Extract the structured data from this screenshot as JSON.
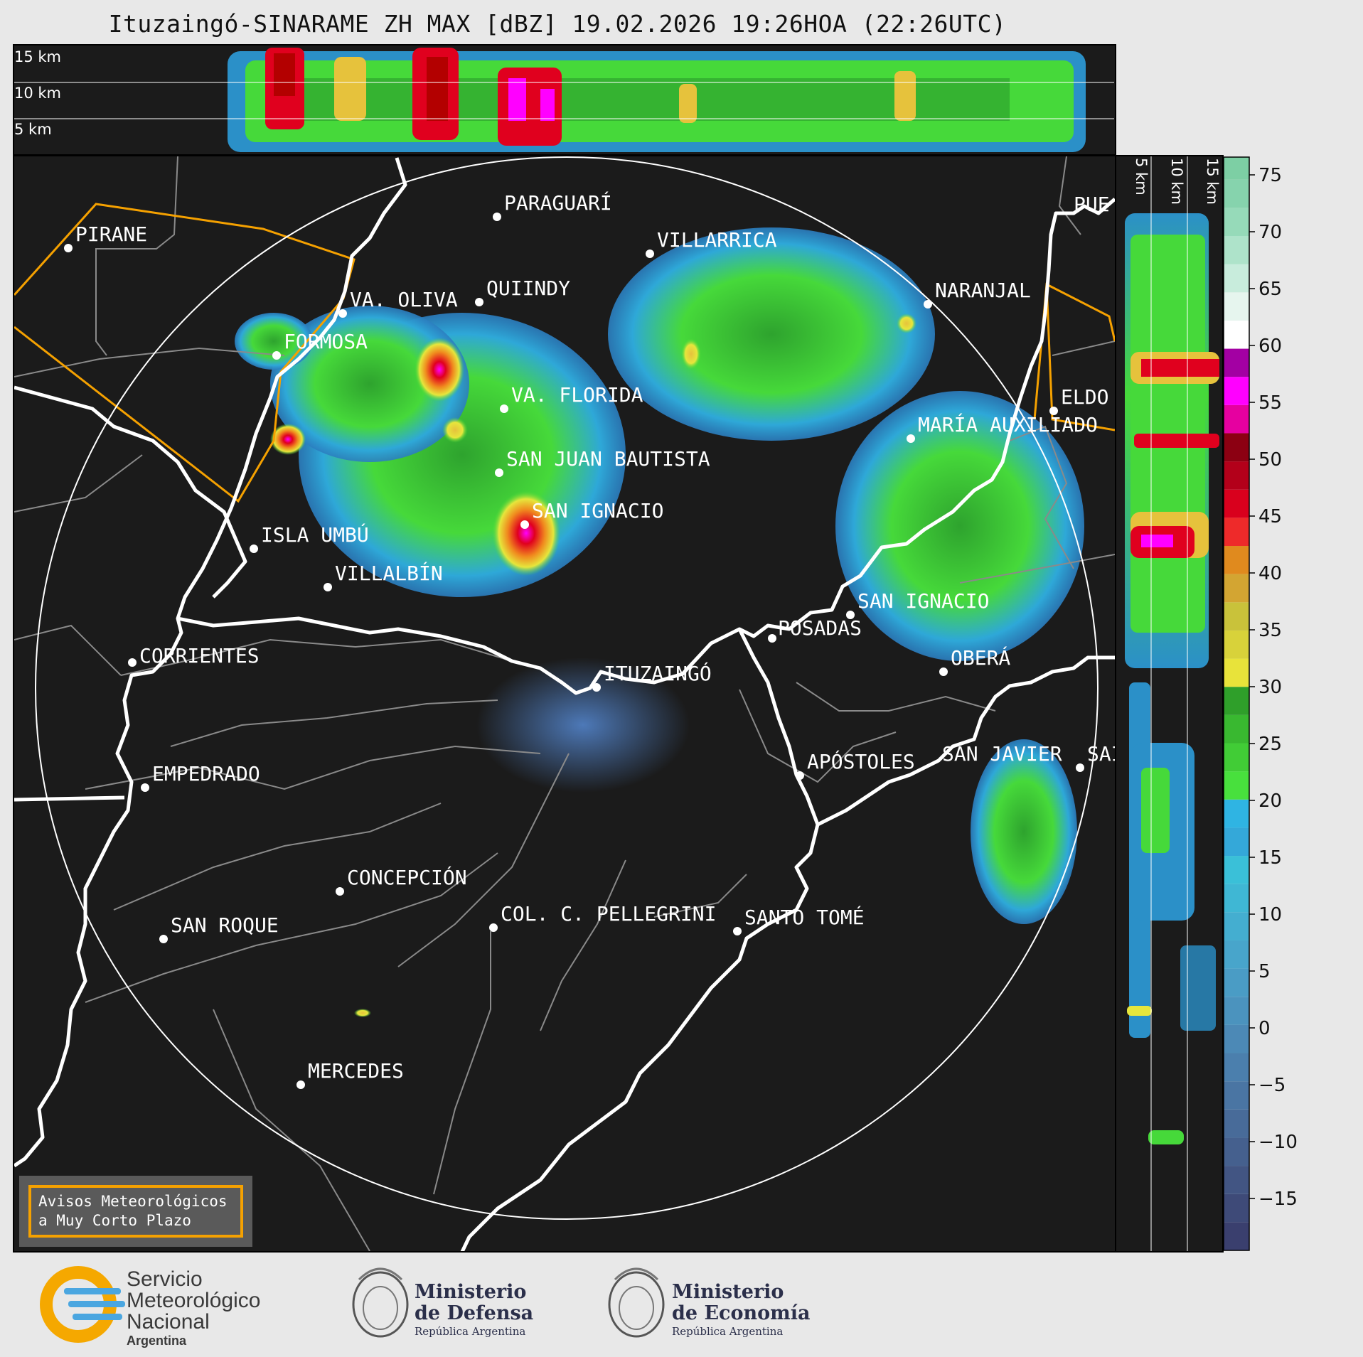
{
  "title": "Ituzaingó-SINARAME ZH MAX [dBZ] 19.02.2026 19:26HOA (22:26UTC)",
  "profile_top": {
    "levels": [
      "15 km",
      "10 km",
      "5 km"
    ]
  },
  "profile_right": {
    "levels": [
      "5 km",
      "10 km",
      "15 km"
    ]
  },
  "colorbar": {
    "ticks": [
      "75",
      "70",
      "65",
      "60",
      "55",
      "50",
      "45",
      "40",
      "35",
      "30",
      "25",
      "20",
      "15",
      "10",
      "5",
      "0",
      "−5",
      "−10",
      "−15"
    ],
    "range": [
      -20,
      77
    ]
  },
  "map": {
    "radar_site": "ITUZAINGÓ",
    "cities": [
      "PIRANE",
      "PARAGUARÍ",
      "VILLARRICA",
      "QUIINDY",
      "VA. OLIVA",
      "FORMOSA",
      "NARANJAL",
      "PUE",
      "ELDO",
      "MARÍA AUXILIADO",
      "VA. FLORIDA",
      "SAN JUAN BAUTISTA",
      "SAN IGNACIO",
      "ISLA UMBÚ",
      "VILLALBÍN",
      "SAN IGNACIO",
      "POSADAS",
      "CORRIENTES",
      "OBERÁ",
      "ITUZAINGÓ",
      "APÓSTOLES",
      "SAN JAVIER",
      "SAI",
      "EMPEDRADO",
      "CONCEPCIÓN",
      "COL. C. PELLEGRINI",
      "SANTO TOMÉ",
      "SAN ROQUE",
      "MERCEDES"
    ]
  },
  "notice": {
    "line1": "Avisos Meteorológicos",
    "line2": "a Muy Corto Plazo"
  },
  "logos": {
    "smn": {
      "line1": "Servicio",
      "line2": "Meteorológico",
      "line3": "Nacional",
      "line4": "Argentina"
    },
    "defensa": {
      "line1": "Ministerio",
      "line2": "de Defensa",
      "line3": "República Argentina"
    },
    "economia": {
      "line1": "Ministerio",
      "line2": "de Economía",
      "line3": "República Argentina"
    }
  }
}
